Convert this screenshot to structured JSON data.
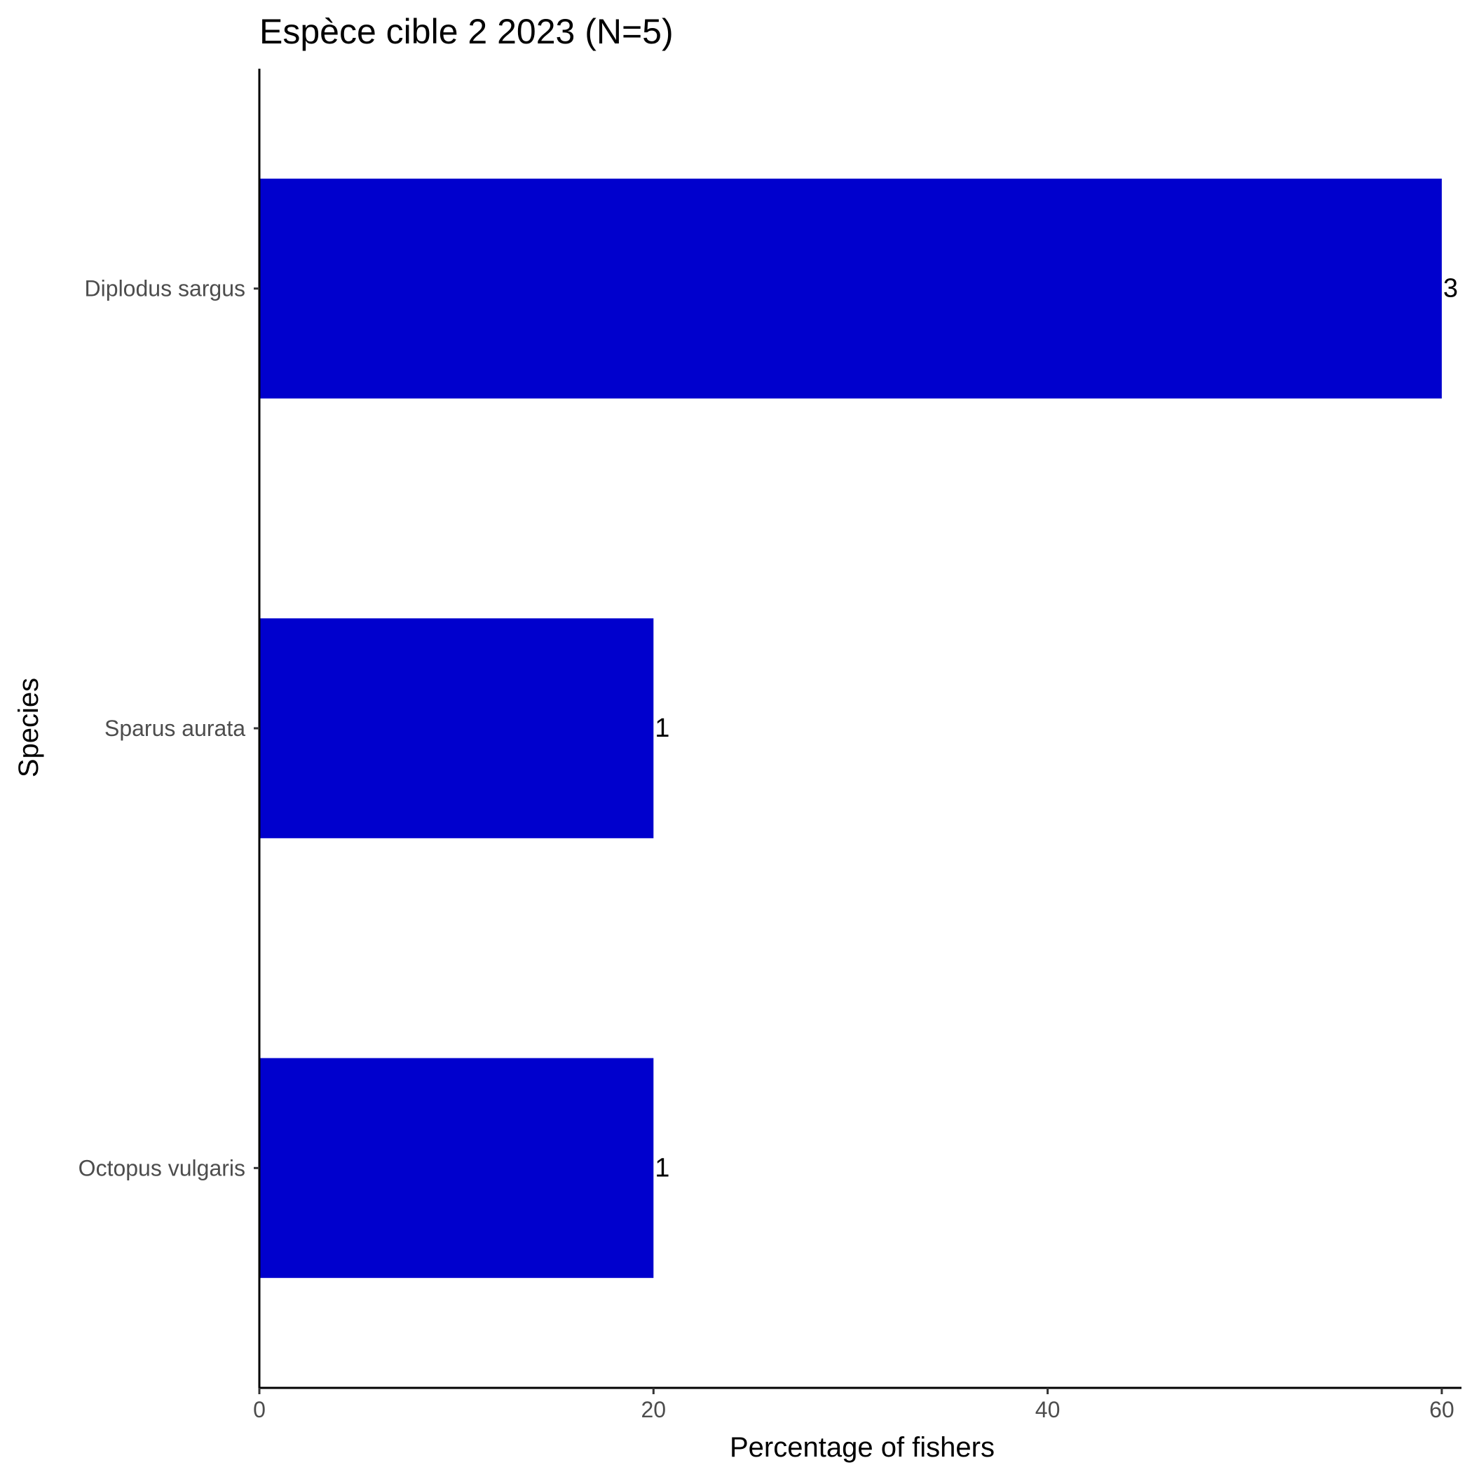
{
  "chart_data": {
    "type": "bar",
    "orientation": "horizontal",
    "title": "Espèce cible 2 2023 (N=5)",
    "xlabel": "Percentage of fishers",
    "ylabel": "Species",
    "categories": [
      "Diplodus sargus",
      "Sparus aurata",
      "Octopus vulgaris"
    ],
    "values": [
      60,
      20,
      20
    ],
    "data_labels": [
      "3",
      "1",
      "1"
    ],
    "xlim": [
      0,
      61
    ],
    "xticks": [
      0,
      20,
      40,
      60
    ],
    "xtick_labels": [
      "0",
      "20",
      "40",
      "60"
    ],
    "grid": false,
    "legend": "none",
    "bar_color": "#0000CD"
  }
}
